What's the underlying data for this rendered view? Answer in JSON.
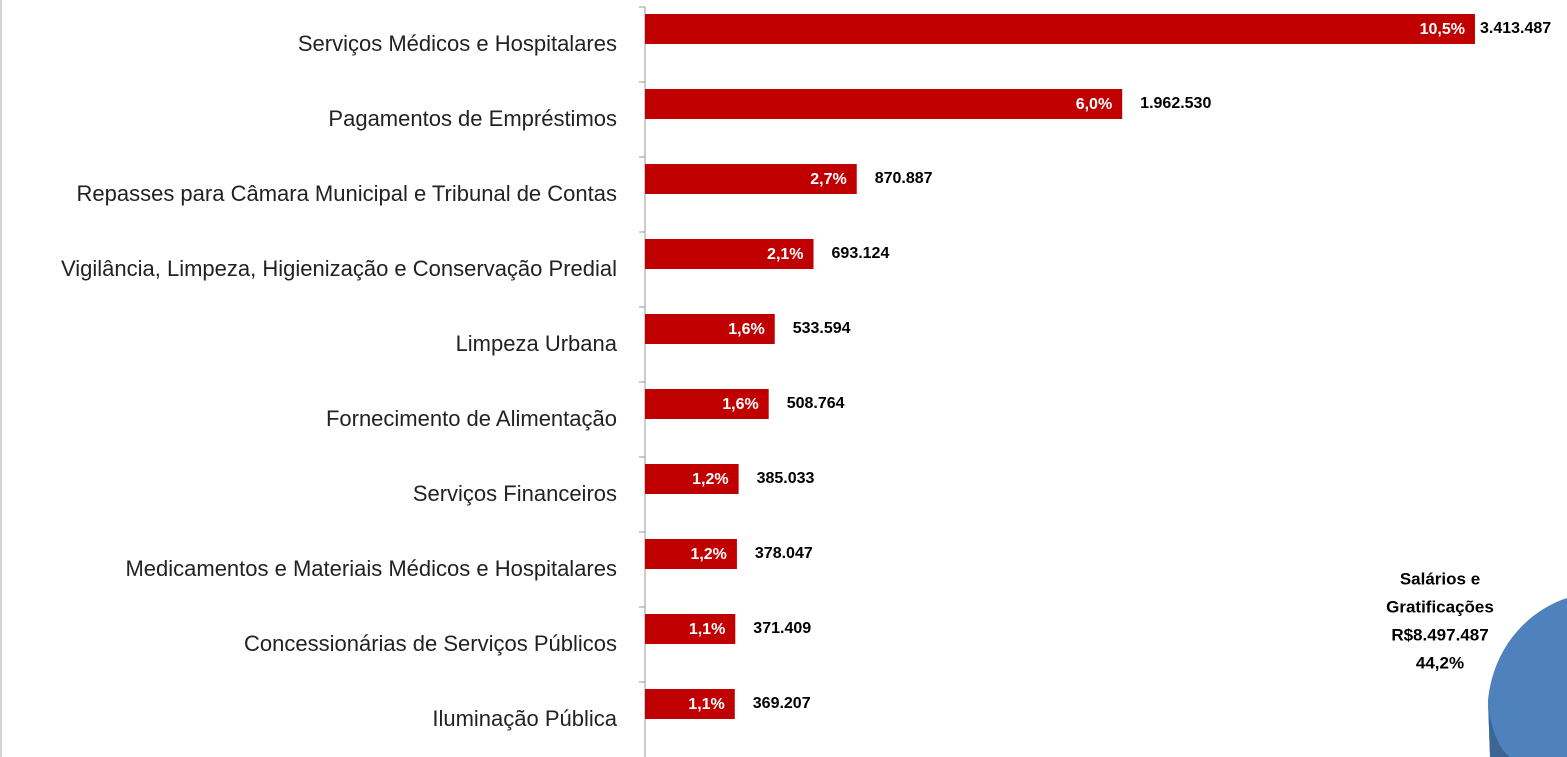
{
  "chart_data": {
    "type": "bar",
    "orientation": "horizontal",
    "categories": [
      "Serviços Médicos e Hospitalares",
      "Pagamentos de Empréstimos",
      "Repasses para Câmara Municipal e Tribunal de Contas",
      "Vigilância, Limpeza, Higienização  e Conservação Predial",
      "Limpeza Urbana",
      "Fornecimento de Alimentação",
      "Serviços Financeiros",
      "Medicamentos e Materiais Médicos e Hospitalares",
      "Concessionárias de Serviços Públicos",
      "Iluminação Pública"
    ],
    "values": [
      3413487,
      1962530,
      870887,
      693124,
      533594,
      508764,
      385033,
      378047,
      371409,
      369207
    ],
    "value_labels": [
      "3.413.487",
      "1.962.530",
      "870.887",
      "693.124",
      "533.594",
      "508.764",
      "385.033",
      "378.047",
      "371.409",
      "369.207"
    ],
    "shares": [
      10.5,
      6.0,
      2.7,
      2.1,
      1.6,
      1.6,
      1.2,
      1.2,
      1.1,
      1.1
    ],
    "share_labels": [
      "10,5%",
      "6,0%",
      "2,7%",
      "2,1%",
      "1,6%",
      "1,6%",
      "1,2%",
      "1,2%",
      "1,1%",
      "1,1%"
    ],
    "color": "#c00000",
    "xlim": [
      0,
      3500000
    ],
    "annotation": [
      "Salários e",
      "Gratificações",
      "R$8.497.487",
      "44,2%"
    ]
  }
}
